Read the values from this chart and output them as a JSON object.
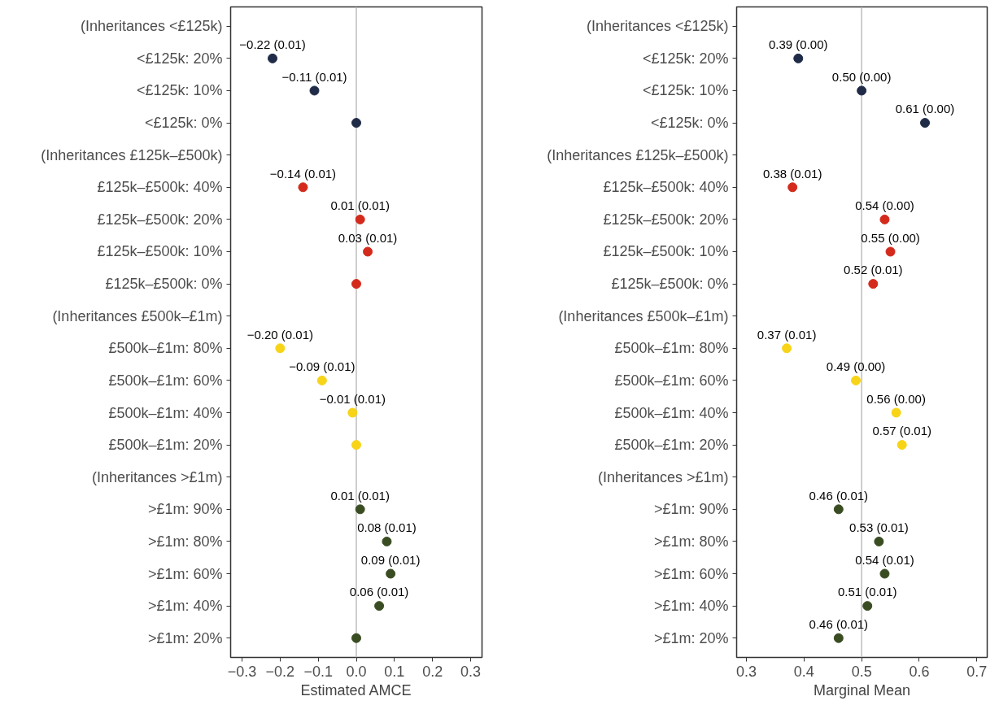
{
  "chart_data": [
    {
      "type": "scatter",
      "orientation": "horizontal",
      "xlabel": "Estimated AMCE",
      "categories": [
        "(Inheritances <£125k)",
        "<£125k: 20%",
        "<£125k: 10%",
        "<£125k: 0%",
        "(Inheritances £125k–£500k)",
        "£125k–£500k: 40%",
        "£125k–£500k: 20%",
        "£125k–£500k: 10%",
        "£125k–£500k: 0%",
        "(Inheritances £500k–£1m)",
        "£500k–£1m: 80%",
        "£500k–£1m: 60%",
        "£500k–£1m: 40%",
        "£500k–£1m: 20%",
        "(Inheritances >£1m)",
        ">£1m: 90%",
        ">£1m: 80%",
        ">£1m: 60%",
        ">£1m: 40%",
        ">£1m: 20%"
      ],
      "series": [
        {
          "color": "#1f2b47",
          "values": [
            null,
            -0.22,
            -0.11,
            0,
            null,
            null,
            null,
            null,
            null,
            null,
            null,
            null,
            null,
            null,
            null,
            null,
            null,
            null,
            null,
            null
          ],
          "value_labels": [
            null,
            "−0.22 (0.01)",
            "−0.11 (0.01)",
            null,
            null,
            null,
            null,
            null,
            null,
            null,
            null,
            null,
            null,
            null,
            null,
            null,
            null,
            null,
            null,
            null
          ]
        },
        {
          "color": "#d42a1c",
          "values": [
            null,
            null,
            null,
            null,
            null,
            -0.14,
            0.01,
            0.03,
            0,
            null,
            null,
            null,
            null,
            null,
            null,
            null,
            null,
            null,
            null,
            null
          ],
          "value_labels": [
            null,
            null,
            null,
            null,
            null,
            "−0.14 (0.01)",
            "0.01 (0.01)",
            "0.03 (0.01)",
            null,
            null,
            null,
            null,
            null,
            null,
            null,
            null,
            null,
            null,
            null,
            null
          ]
        },
        {
          "color": "#f7d417",
          "values": [
            null,
            null,
            null,
            null,
            null,
            null,
            null,
            null,
            null,
            null,
            -0.2,
            -0.09,
            -0.01,
            0,
            null,
            null,
            null,
            null,
            null,
            null
          ],
          "value_labels": [
            null,
            null,
            null,
            null,
            null,
            null,
            null,
            null,
            null,
            null,
            "−0.20 (0.01)",
            "−0.09 (0.01)",
            "−0.01 (0.01)",
            null,
            null,
            null,
            null,
            null,
            null,
            null
          ]
        },
        {
          "color": "#3a4d22",
          "values": [
            null,
            null,
            null,
            null,
            null,
            null,
            null,
            null,
            null,
            null,
            null,
            null,
            null,
            null,
            null,
            0.01,
            0.08,
            0.09,
            0.06,
            0
          ],
          "value_labels": [
            null,
            null,
            null,
            null,
            null,
            null,
            null,
            null,
            null,
            null,
            null,
            null,
            null,
            null,
            null,
            "0.01 (0.01)",
            "0.08 (0.01)",
            "0.09 (0.01)",
            "0.06 (0.01)",
            null
          ]
        }
      ],
      "xlim": [
        -0.33,
        0.33
      ],
      "xticks": [
        {
          "value": -0.3,
          "label": "−0.3"
        },
        {
          "value": -0.2,
          "label": "−0.2"
        },
        {
          "value": -0.1,
          "label": "−0.1"
        },
        {
          "value": 0,
          "label": "0.0"
        },
        {
          "value": 0.1,
          "label": "0.1"
        },
        {
          "value": 0.2,
          "label": "0.2"
        },
        {
          "value": 0.3,
          "label": "0.3"
        }
      ],
      "ref_lines": [
        {
          "axis": "x",
          "value": 0,
          "color": "#bebebe"
        }
      ],
      "grid": false,
      "marker": "circle"
    },
    {
      "type": "scatter",
      "orientation": "horizontal",
      "xlabel": "Marginal Mean",
      "categories": [
        "(Inheritances <£125k)",
        "<£125k: 20%",
        "<£125k: 10%",
        "<£125k: 0%",
        "(Inheritances £125k–£500k)",
        "£125k–£500k: 40%",
        "£125k–£500k: 20%",
        "£125k–£500k: 10%",
        "£125k–£500k: 0%",
        "(Inheritances £500k–£1m)",
        "£500k–£1m: 80%",
        "£500k–£1m: 60%",
        "£500k–£1m: 40%",
        "£500k–£1m: 20%",
        "(Inheritances >£1m)",
        ">£1m: 90%",
        ">£1m: 80%",
        ">£1m: 60%",
        ">£1m: 40%",
        ">£1m: 20%"
      ],
      "series": [
        {
          "color": "#1f2b47",
          "values": [
            null,
            0.39,
            0.5,
            0.61,
            null,
            null,
            null,
            null,
            null,
            null,
            null,
            null,
            null,
            null,
            null,
            null,
            null,
            null,
            null,
            null
          ],
          "value_labels": [
            null,
            "0.39 (0.00)",
            "0.50 (0.00)",
            "0.61 (0.00)",
            null,
            null,
            null,
            null,
            null,
            null,
            null,
            null,
            null,
            null,
            null,
            null,
            null,
            null,
            null,
            null
          ]
        },
        {
          "color": "#d42a1c",
          "values": [
            null,
            null,
            null,
            null,
            null,
            0.38,
            0.54,
            0.55,
            0.52,
            null,
            null,
            null,
            null,
            null,
            null,
            null,
            null,
            null,
            null,
            null
          ],
          "value_labels": [
            null,
            null,
            null,
            null,
            null,
            "0.38 (0.01)",
            "0.54 (0.00)",
            "0.55 (0.00)",
            "0.52 (0.01)",
            null,
            null,
            null,
            null,
            null,
            null,
            null,
            null,
            null,
            null,
            null
          ]
        },
        {
          "color": "#f7d417",
          "values": [
            null,
            null,
            null,
            null,
            null,
            null,
            null,
            null,
            null,
            null,
            0.37,
            0.49,
            0.56,
            0.57,
            null,
            null,
            null,
            null,
            null,
            null
          ],
          "value_labels": [
            null,
            null,
            null,
            null,
            null,
            null,
            null,
            null,
            null,
            null,
            "0.37 (0.01)",
            "0.49 (0.00)",
            "0.56 (0.00)",
            "0.57 (0.01)",
            null,
            null,
            null,
            null,
            null,
            null
          ]
        },
        {
          "color": "#3a4d22",
          "values": [
            null,
            null,
            null,
            null,
            null,
            null,
            null,
            null,
            null,
            null,
            null,
            null,
            null,
            null,
            null,
            0.46,
            0.53,
            0.54,
            0.51,
            0.46
          ],
          "value_labels": [
            null,
            null,
            null,
            null,
            null,
            null,
            null,
            null,
            null,
            null,
            null,
            null,
            null,
            null,
            null,
            "0.46 (0.01)",
            "0.53 (0.01)",
            "0.54 (0.01)",
            "0.51 (0.01)",
            "0.46 (0.01)"
          ]
        }
      ],
      "xlim": [
        0.283,
        0.718
      ],
      "xticks": [
        0.3,
        0.4,
        0.5,
        0.6,
        0.7
      ],
      "ref_lines": [
        {
          "axis": "x",
          "value": 0.5,
          "color": "#bebebe"
        }
      ],
      "grid": false,
      "marker": "circle"
    }
  ]
}
